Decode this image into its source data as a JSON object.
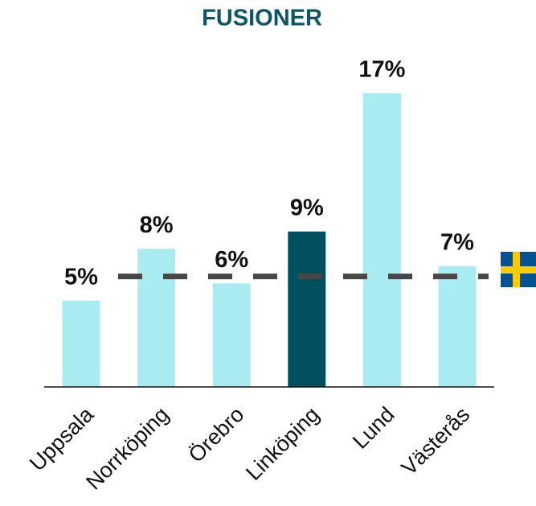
{
  "chart_data": {
    "type": "bar",
    "title": "FUSIONER",
    "categories": [
      "Uppsala",
      "Norrköping",
      "Örebro",
      "Linköping",
      "Lund",
      "Västerås"
    ],
    "values": [
      5,
      8,
      6,
      9,
      17,
      7
    ],
    "value_labels": [
      "5%",
      "8%",
      "6%",
      "9%",
      "17%",
      "7%"
    ],
    "colors": [
      "#a8ecf2",
      "#a8ecf2",
      "#a8ecf2",
      "#00505f",
      "#a8ecf2",
      "#a8ecf2"
    ],
    "ylim": [
      0,
      17
    ],
    "reference_line": {
      "value": 6.4,
      "color": "#474747"
    }
  }
}
